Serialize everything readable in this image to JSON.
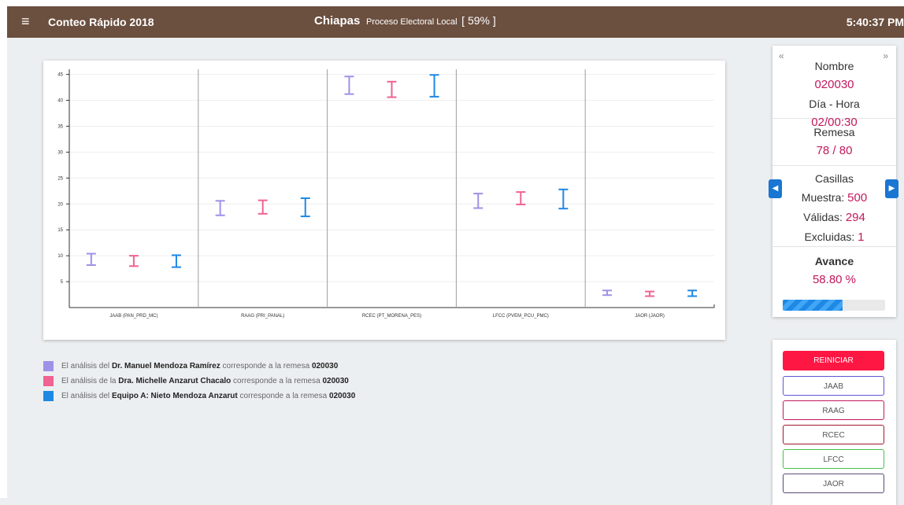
{
  "header": {
    "app_title": "Conteo Rápido 2018",
    "state": "Chiapas",
    "process": "Proceso Electoral Local",
    "progress_text": "[ 59% ]",
    "time": "5:40:37 PM",
    "menu_icon": "hamburger-menu-icon"
  },
  "chart_data": {
    "type": "error-bar",
    "categories": [
      "JAAB (PAN_PRD_MC)",
      "RAAG (PRI_PANAL)",
      "RCEC (PT_MORENA_PES)",
      "LFCC (PVEM_PCU_PMC)",
      "JAOR (JAOR)"
    ],
    "yticks": [
      5,
      10,
      15,
      20,
      25,
      30,
      35,
      40,
      45
    ],
    "ylim": [
      0,
      46
    ],
    "series": [
      {
        "color": "#9d92e8",
        "intervals": [
          [
            8.2,
            10.4
          ],
          [
            17.8,
            20.6
          ],
          [
            41.2,
            44.6
          ],
          [
            19.2,
            22.0
          ],
          [
            2.4,
            3.3
          ]
        ]
      },
      {
        "color": "#f06292",
        "intervals": [
          [
            8.0,
            10.0
          ],
          [
            18.1,
            20.7
          ],
          [
            40.6,
            43.6
          ],
          [
            19.9,
            22.3
          ],
          [
            2.2,
            3.1
          ]
        ]
      },
      {
        "color": "#1e88e5",
        "intervals": [
          [
            7.8,
            10.1
          ],
          [
            17.6,
            21.1
          ],
          [
            40.7,
            44.9
          ],
          [
            19.1,
            22.8
          ],
          [
            2.2,
            3.3
          ]
        ]
      }
    ]
  },
  "legend": [
    {
      "color": "#9d92e8",
      "prefix": "El análisis del",
      "name": "Dr. Manuel Mendoza Ramírez",
      "middle": "corresponde a la remesa",
      "remesa": "020030"
    },
    {
      "color": "#f06292",
      "prefix": "El análisis de la",
      "name": "Dra. Michelle Anzarut Chacalo",
      "middle": "corresponde a la remesa",
      "remesa": "020030"
    },
    {
      "color": "#1e88e5",
      "prefix": "El análisis del",
      "name": "Equipo A: Nieto Mendoza Anzarut",
      "middle": "corresponde a la remesa",
      "remesa": "020030"
    }
  ],
  "info": {
    "prev_double": "«",
    "next_double": "»",
    "nombre_label": "Nombre",
    "nombre_value": "020030",
    "dia_hora_label": "Día - Hora",
    "dia_hora_value": "02/00:30",
    "remesa_label": "Remesa",
    "remesa_value": "78 / 80",
    "casillas_label": "Casillas",
    "muestra_label": "Muestra:",
    "muestra_value": "500",
    "validas_label": "Válidas:",
    "validas_value": "294",
    "excluidas_label": "Excluidas:",
    "excluidas_value": "1",
    "avance_label": "Avance",
    "avance_value": "58.80 %",
    "avance_fraction": 0.588,
    "prev_arrow": "◀",
    "next_arrow": "▶"
  },
  "buttons": {
    "reset": "REINICIAR",
    "items": [
      {
        "label": "JAAB",
        "border": "#5c55d6"
      },
      {
        "label": "RAAG",
        "border": "#c2185b"
      },
      {
        "label": "RCEC",
        "border": "#9e1b2a"
      },
      {
        "label": "LFCC",
        "border": "#43c24a"
      },
      {
        "label": "JAOR",
        "border": "#5a4a7a"
      }
    ]
  }
}
